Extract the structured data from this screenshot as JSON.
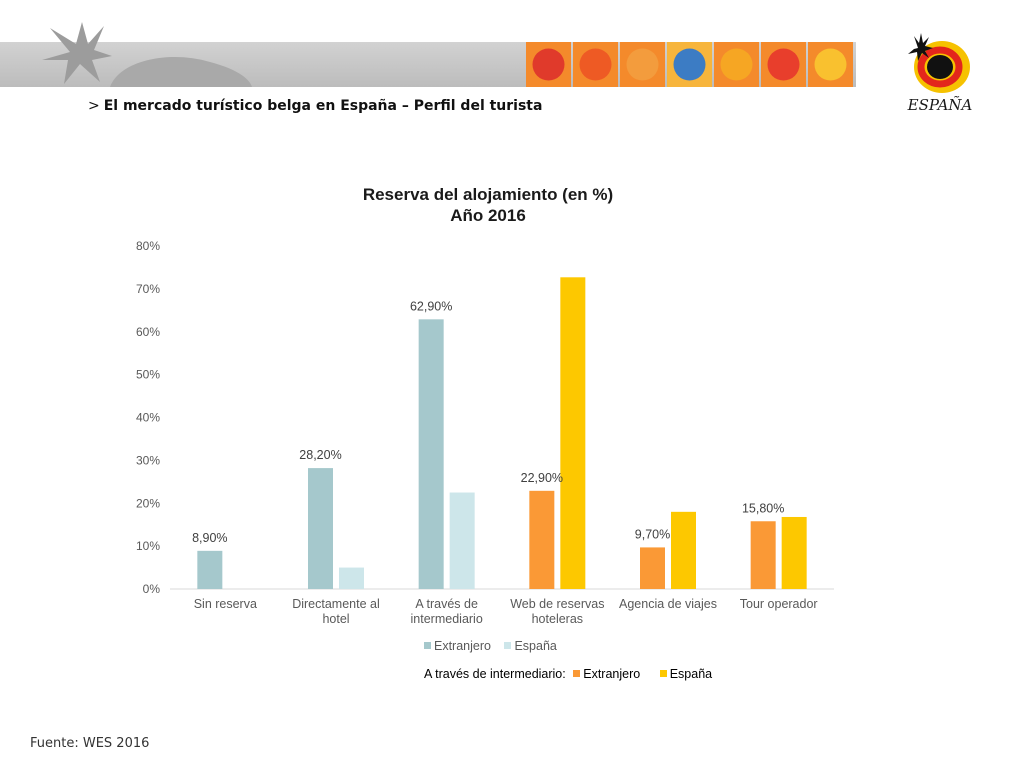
{
  "header": {
    "breadcrumb_chevron": ">",
    "breadcrumb": "El mercado turístico belga en España – Perfil del turista",
    "tile_colors": [
      "#e03a2b",
      "#ee5a24",
      "#f39c3d",
      "#3c7cc4",
      "#f6a623",
      "#e83e2c",
      "#f9c12f"
    ]
  },
  "logo": {
    "text": "ESPAÑA",
    "colors": {
      "sun": "#f6c200",
      "ring": "#e3261c",
      "star": "#111111"
    }
  },
  "chart_data": {
    "type": "bar",
    "title_lines": [
      "Reserva del alojamiento (en %)",
      "Año 2016"
    ],
    "categories": [
      [
        "Sin reserva"
      ],
      [
        "Directamente al",
        "hotel"
      ],
      [
        "A través de",
        "intermediario"
      ],
      [
        "Web de reservas",
        "hoteleras"
      ],
      [
        "Agencia de viajes"
      ],
      [
        "Tour operador"
      ]
    ],
    "series": [
      {
        "name": "Extranjero",
        "values": [
          8.9,
          28.2,
          62.9,
          22.9,
          9.7,
          15.8
        ],
        "colors": [
          "#a5c8cc",
          "#a5c8cc",
          "#a5c8cc",
          "#fa9936",
          "#fa9936",
          "#fa9936"
        ]
      },
      {
        "name": "España",
        "values": [
          null,
          5.0,
          22.5,
          72.7,
          18.0,
          16.8
        ],
        "colors": [
          "#cde6ea",
          "#cde6ea",
          "#cde6ea",
          "#fdc800",
          "#fdc800",
          "#fdc800"
        ]
      }
    ],
    "data_labels": [
      "8,90%",
      "28,20%",
      "62,90%",
      "22,90%",
      "9,70%",
      "15,80%"
    ],
    "ylim": [
      0,
      80
    ],
    "yticks": [
      0,
      10,
      20,
      30,
      40,
      50,
      60,
      70,
      80
    ],
    "ytick_labels": [
      "0%",
      "10%",
      "20%",
      "30%",
      "40%",
      "50%",
      "60%",
      "70%",
      "80%"
    ],
    "grid": false,
    "legend": [
      {
        "name": "Extranjero",
        "color": "#a5c8cc"
      },
      {
        "name": "España",
        "color": "#cde6ea"
      }
    ],
    "legend_secondary": {
      "label": "A través de intermediario:",
      "items": [
        {
          "name": "Extranjero",
          "color": "#fa9936"
        },
        {
          "name": "España",
          "color": "#fdc800"
        }
      ]
    }
  },
  "footer": {
    "source": "Fuente: WES 2016"
  }
}
